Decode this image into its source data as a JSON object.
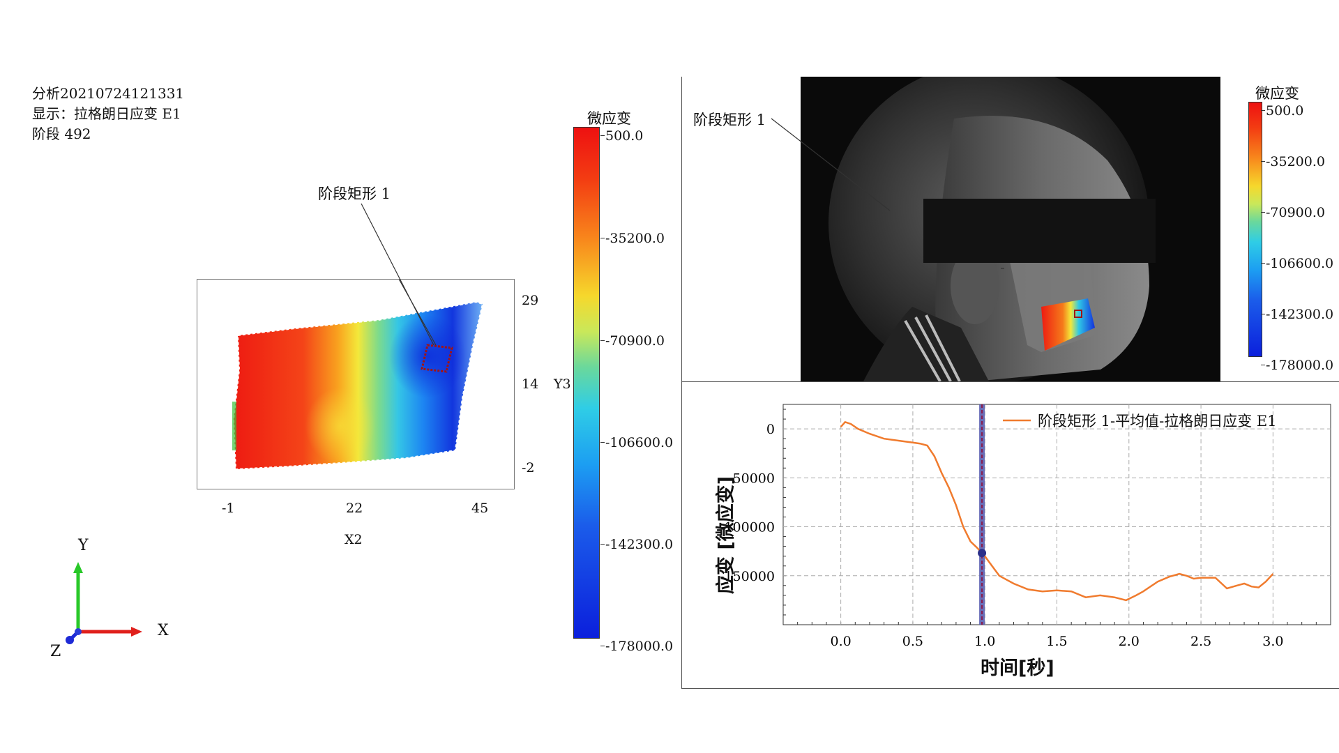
{
  "left_panel": {
    "info_lines": [
      "分析20210724121331",
      "显示：拉格朗日应变 E1",
      "阶段 492"
    ],
    "annotation_label": "阶段矩形 1",
    "plot": {
      "x_ticks": [
        "-1",
        "22",
        "45"
      ],
      "y_ticks": [
        "29",
        "14",
        "-2"
      ],
      "x_axis_label": "X2",
      "y_axis_label": "Y3"
    },
    "colorbar": {
      "title": "微应变",
      "ticks": [
        "500.0",
        "-35200.0",
        "-70900.0",
        "-106600.0",
        "-142300.0",
        "-178000.0"
      ]
    },
    "axes_triad": {
      "x": "X",
      "y": "Y",
      "z": "Z",
      "x_color": "#e0201c",
      "y_color": "#28c828",
      "z_color": "#1e2ad6"
    }
  },
  "camera_panel": {
    "annotation_label": "阶段矩形 1",
    "colorbar": {
      "title": "微应变",
      "ticks": [
        "500.0",
        "-35200.0",
        "-70900.0",
        "-106600.0",
        "-142300.0",
        "-178000.0"
      ]
    }
  },
  "chart_data": {
    "type": "line",
    "title": "",
    "xlabel": "时间[秒]",
    "ylabel": "应变 [微应变]",
    "xlim": [
      -0.4,
      3.4
    ],
    "ylim": [
      -200000,
      25000
    ],
    "x_ticks": [
      "0.0",
      "0.5",
      "1.0",
      "1.5",
      "2.0",
      "2.5",
      "3.0"
    ],
    "y_ticks": [
      "0",
      "-50000",
      "-100000",
      "-150000"
    ],
    "grid": true,
    "legend_position": "top-right",
    "cursor_x": 0.98,
    "series": [
      {
        "name": "阶段矩形 1-平均值-拉格朗日应变 E1",
        "color": "#f07b2e",
        "x": [
          0.0,
          0.03,
          0.07,
          0.12,
          0.2,
          0.3,
          0.4,
          0.5,
          0.55,
          0.6,
          0.65,
          0.7,
          0.75,
          0.8,
          0.85,
          0.9,
          0.95,
          1.0,
          1.05,
          1.1,
          1.2,
          1.3,
          1.4,
          1.5,
          1.6,
          1.7,
          1.8,
          1.9,
          1.98,
          2.05,
          2.1,
          2.2,
          2.28,
          2.35,
          2.4,
          2.45,
          2.5,
          2.6,
          2.68,
          2.75,
          2.8,
          2.85,
          2.9,
          2.95,
          3.0
        ],
        "y": [
          2000,
          7000,
          5000,
          0,
          -5000,
          -10000,
          -12000,
          -14000,
          -15000,
          -17000,
          -28000,
          -45000,
          -60000,
          -78000,
          -100000,
          -115000,
          -122000,
          -130000,
          -140000,
          -150000,
          -158000,
          -164000,
          -166000,
          -165000,
          -166000,
          -172000,
          -170000,
          -172000,
          -175000,
          -170000,
          -166000,
          -156000,
          -151000,
          -148000,
          -150000,
          -153000,
          -152000,
          -152000,
          -163000,
          -160000,
          -158000,
          -161000,
          -162000,
          -156000,
          -148000
        ]
      }
    ]
  }
}
